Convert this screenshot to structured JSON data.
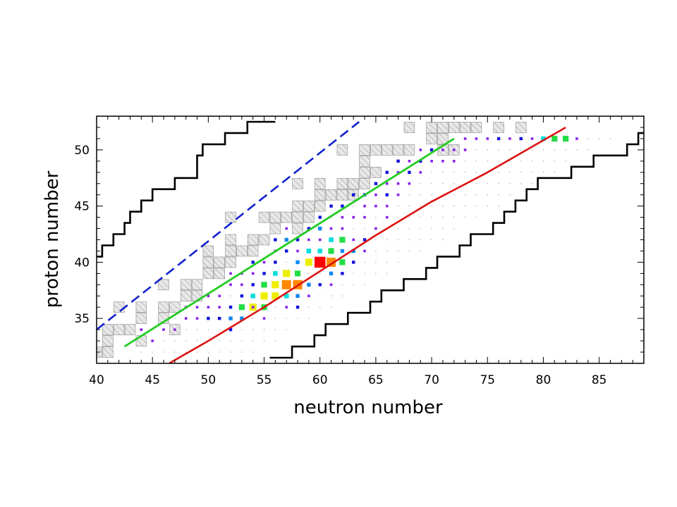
{
  "chart_data": {
    "type": "scatter",
    "title": "",
    "xlabel": "neutron number",
    "ylabel": "proton number",
    "xlim": [
      40,
      89
    ],
    "ylim": [
      31,
      53
    ],
    "x_ticks": [
      40,
      45,
      50,
      55,
      60,
      65,
      70,
      75,
      80,
      85
    ],
    "y_ticks": [
      35,
      40,
      45,
      50
    ],
    "grid": false,
    "legend": "none",
    "colors": {
      "frame": "#000000",
      "green_line": "#22cc22",
      "red_line": "#dd1111",
      "blue_dashed": "#1122cc",
      "hatch_fill": "#e8e8e8",
      "hatch_edge": "#8a8a8a"
    },
    "color_scale": [
      "#ff00ff",
      "#8822ee",
      "#1111dd",
      "#1188ee",
      "#00dddd",
      "#22dd44",
      "#eeee00",
      "#ff8800",
      "#ff0000"
    ],
    "lines": {
      "green": [
        [
          42.5,
          32.5
        ],
        [
          72,
          51
        ]
      ],
      "red": [
        [
          46.5,
          31
        ],
        [
          50,
          33
        ],
        [
          55,
          36
        ],
        [
          60,
          39.2
        ],
        [
          65,
          42.4
        ],
        [
          70,
          45.4
        ],
        [
          75,
          48
        ],
        [
          82,
          52
        ]
      ],
      "blue_dashed": [
        [
          40,
          34
        ],
        [
          63.5,
          52.5
        ]
      ]
    },
    "drip_line_left": [
      [
        40,
        40.5
      ],
      [
        40.5,
        40.5
      ],
      [
        40.5,
        41.5
      ],
      [
        41.5,
        41.5
      ],
      [
        41.5,
        42.5
      ],
      [
        42.5,
        42.5
      ],
      [
        42.5,
        43.5
      ],
      [
        43,
        43.5
      ],
      [
        43,
        44.5
      ],
      [
        44,
        44.5
      ],
      [
        44,
        45.5
      ],
      [
        45,
        45.5
      ],
      [
        45,
        46.5
      ],
      [
        47,
        46.5
      ],
      [
        47,
        47.5
      ],
      [
        49,
        47.5
      ],
      [
        49,
        49.5
      ],
      [
        49.5,
        49.5
      ],
      [
        49.5,
        50.5
      ],
      [
        51.5,
        50.5
      ],
      [
        51.5,
        51.5
      ],
      [
        53.5,
        51.5
      ],
      [
        53.5,
        52.5
      ],
      [
        56,
        52.5
      ]
    ],
    "drip_line_right": [
      [
        55.5,
        31.5
      ],
      [
        57.5,
        31.5
      ],
      [
        57.5,
        32.5
      ],
      [
        59.5,
        32.5
      ],
      [
        59.5,
        33.5
      ],
      [
        60.5,
        33.5
      ],
      [
        60.5,
        34.5
      ],
      [
        62.5,
        34.5
      ],
      [
        62.5,
        35.5
      ],
      [
        64.5,
        35.5
      ],
      [
        64.5,
        36.5
      ],
      [
        65.5,
        36.5
      ],
      [
        65.5,
        37.5
      ],
      [
        67.5,
        37.5
      ],
      [
        67.5,
        38.5
      ],
      [
        69.5,
        38.5
      ],
      [
        69.5,
        39.5
      ],
      [
        70.5,
        39.5
      ],
      [
        70.5,
        40.5
      ],
      [
        72.5,
        40.5
      ],
      [
        72.5,
        41.5
      ],
      [
        73.5,
        41.5
      ],
      [
        73.5,
        42.5
      ],
      [
        75.5,
        42.5
      ],
      [
        75.5,
        43.5
      ],
      [
        76.5,
        43.5
      ],
      [
        76.5,
        44.5
      ],
      [
        77.5,
        44.5
      ],
      [
        77.5,
        45.5
      ],
      [
        78.5,
        45.5
      ],
      [
        78.5,
        46.5
      ],
      [
        79.5,
        46.5
      ],
      [
        79.5,
        47.5
      ],
      [
        82.5,
        47.5
      ],
      [
        82.5,
        48.5
      ],
      [
        84.5,
        48.5
      ],
      [
        84.5,
        49.5
      ],
      [
        87.5,
        49.5
      ],
      [
        87.5,
        50.5
      ],
      [
        88.5,
        50.5
      ],
      [
        88.5,
        51.5
      ],
      [
        89,
        51.5
      ]
    ],
    "hatched_boxes": [
      [
        40,
        32
      ],
      [
        41,
        32
      ],
      [
        41,
        33
      ],
      [
        41,
        34
      ],
      [
        42,
        34
      ],
      [
        43,
        34
      ],
      [
        42,
        36
      ],
      [
        44,
        35
      ],
      [
        44,
        36
      ],
      [
        44,
        33
      ],
      [
        46,
        36
      ],
      [
        46,
        35
      ],
      [
        47,
        36
      ],
      [
        47,
        34
      ],
      [
        48,
        37
      ],
      [
        48,
        38
      ],
      [
        49,
        38
      ],
      [
        49,
        37
      ],
      [
        50,
        39
      ],
      [
        50,
        40
      ],
      [
        50,
        41
      ],
      [
        46,
        38
      ],
      [
        51,
        39
      ],
      [
        51,
        40
      ],
      [
        52,
        40
      ],
      [
        52,
        41
      ],
      [
        52,
        42
      ],
      [
        52,
        44
      ],
      [
        53,
        41
      ],
      [
        54,
        41
      ],
      [
        54,
        42
      ],
      [
        55,
        42
      ],
      [
        55,
        44
      ],
      [
        56,
        43
      ],
      [
        56,
        44
      ],
      [
        57,
        44
      ],
      [
        58,
        43
      ],
      [
        58,
        44
      ],
      [
        59,
        44
      ],
      [
        58,
        45
      ],
      [
        59,
        45
      ],
      [
        60,
        45
      ],
      [
        60,
        46
      ],
      [
        60,
        47
      ],
      [
        58,
        47
      ],
      [
        61,
        46
      ],
      [
        62,
        46
      ],
      [
        63,
        46
      ],
      [
        62,
        47
      ],
      [
        63,
        47
      ],
      [
        64,
        47
      ],
      [
        62,
        50
      ],
      [
        64,
        48
      ],
      [
        65,
        48
      ],
      [
        64,
        49
      ],
      [
        64,
        50
      ],
      [
        65,
        50
      ],
      [
        66,
        50
      ],
      [
        67,
        50
      ],
      [
        68,
        50
      ],
      [
        68,
        52
      ],
      [
        70,
        51
      ],
      [
        70,
        52
      ],
      [
        71,
        51
      ],
      [
        71,
        52
      ],
      [
        72,
        52
      ],
      [
        73,
        52
      ],
      [
        74,
        52
      ],
      [
        71,
        50
      ],
      [
        72,
        50
      ],
      [
        76,
        52
      ],
      [
        78,
        52
      ]
    ],
    "nuclei": [
      {
        "n": 60,
        "z": 40,
        "level": 9
      },
      {
        "n": 58,
        "z": 38,
        "level": 8
      },
      {
        "n": 57,
        "z": 38,
        "level": 8
      },
      {
        "n": 61,
        "z": 40,
        "level": 8
      },
      {
        "n": 56,
        "z": 38,
        "level": 7
      },
      {
        "n": 56,
        "z": 37,
        "level": 7
      },
      {
        "n": 55,
        "z": 37,
        "level": 7
      },
      {
        "n": 54,
        "z": 36,
        "level": 7
      },
      {
        "n": 57,
        "z": 39,
        "level": 7
      },
      {
        "n": 59,
        "z": 40,
        "level": 7
      },
      {
        "n": 53,
        "z": 36,
        "level": 6
      },
      {
        "n": 55,
        "z": 36,
        "level": 6
      },
      {
        "n": 55,
        "z": 38,
        "level": 6
      },
      {
        "n": 58,
        "z": 39,
        "level": 6
      },
      {
        "n": 61,
        "z": 41,
        "level": 6
      },
      {
        "n": 62,
        "z": 40,
        "level": 6
      },
      {
        "n": 62,
        "z": 42,
        "level": 6
      },
      {
        "n": 81,
        "z": 51,
        "level": 6
      },
      {
        "n": 82,
        "z": 51,
        "level": 6
      },
      {
        "n": 54,
        "z": 37,
        "level": 5
      },
      {
        "n": 56,
        "z": 39,
        "level": 5
      },
      {
        "n": 59,
        "z": 41,
        "level": 5
      },
      {
        "n": 60,
        "z": 41,
        "level": 5
      },
      {
        "n": 61,
        "z": 42,
        "level": 5
      },
      {
        "n": 57,
        "z": 37,
        "level": 5
      },
      {
        "n": 80,
        "z": 51,
        "level": 5
      },
      {
        "n": 52,
        "z": 35,
        "level": 4
      },
      {
        "n": 53,
        "z": 35,
        "level": 4
      },
      {
        "n": 58,
        "z": 37,
        "level": 4
      },
      {
        "n": 59,
        "z": 38,
        "level": 4
      },
      {
        "n": 60,
        "z": 43,
        "level": 4
      },
      {
        "n": 61,
        "z": 39,
        "level": 4
      },
      {
        "n": 62,
        "z": 41,
        "level": 4
      },
      {
        "n": 57,
        "z": 42,
        "level": 4
      },
      {
        "n": 58,
        "z": 40,
        "level": 4
      },
      {
        "n": 63,
        "z": 41,
        "level": 4
      },
      {
        "n": 50,
        "z": 35,
        "level": 3
      },
      {
        "n": 51,
        "z": 35,
        "level": 3
      },
      {
        "n": 52,
        "z": 36,
        "level": 3
      },
      {
        "n": 53,
        "z": 37,
        "level": 3
      },
      {
        "n": 54,
        "z": 38,
        "level": 3
      },
      {
        "n": 55,
        "z": 39,
        "level": 3
      },
      {
        "n": 56,
        "z": 40,
        "level": 3
      },
      {
        "n": 57,
        "z": 41,
        "level": 3
      },
      {
        "n": 58,
        "z": 42,
        "level": 3
      },
      {
        "n": 59,
        "z": 43,
        "level": 3
      },
      {
        "n": 60,
        "z": 44,
        "level": 3
      },
      {
        "n": 61,
        "z": 45,
        "level": 3
      },
      {
        "n": 62,
        "z": 45,
        "level": 3
      },
      {
        "n": 63,
        "z": 46,
        "level": 3
      },
      {
        "n": 64,
        "z": 46,
        "level": 3
      },
      {
        "n": 65,
        "z": 47,
        "level": 3
      },
      {
        "n": 66,
        "z": 48,
        "level": 3
      },
      {
        "n": 68,
        "z": 48,
        "level": 3
      },
      {
        "n": 69,
        "z": 49,
        "level": 3
      },
      {
        "n": 70,
        "z": 50,
        "level": 3
      },
      {
        "n": 58,
        "z": 36,
        "level": 3
      },
      {
        "n": 60,
        "z": 38,
        "level": 3
      },
      {
        "n": 62,
        "z": 39,
        "level": 3
      },
      {
        "n": 63,
        "z": 40,
        "level": 3
      },
      {
        "n": 64,
        "z": 42,
        "level": 3
      },
      {
        "n": 56,
        "z": 42,
        "level": 3
      },
      {
        "n": 54,
        "z": 40,
        "level": 3
      },
      {
        "n": 52,
        "z": 34,
        "level": 3
      },
      {
        "n": 76,
        "z": 51,
        "level": 3
      },
      {
        "n": 78,
        "z": 51,
        "level": 3
      },
      {
        "n": 66,
        "z": 46,
        "level": 3
      },
      {
        "n": 67,
        "z": 49,
        "level": 3
      },
      {
        "n": 45,
        "z": 33,
        "level": 2
      },
      {
        "n": 47,
        "z": 34,
        "level": 2
      },
      {
        "n": 48,
        "z": 35,
        "level": 2
      },
      {
        "n": 49,
        "z": 36,
        "level": 2
      },
      {
        "n": 50,
        "z": 36,
        "level": 2
      },
      {
        "n": 51,
        "z": 37,
        "level": 2
      },
      {
        "n": 52,
        "z": 38,
        "level": 2
      },
      {
        "n": 53,
        "z": 39,
        "level": 2
      },
      {
        "n": 54,
        "z": 39,
        "level": 2
      },
      {
        "n": 55,
        "z": 40,
        "level": 2
      },
      {
        "n": 56,
        "z": 41,
        "level": 2
      },
      {
        "n": 57,
        "z": 43,
        "level": 2
      },
      {
        "n": 58,
        "z": 41,
        "level": 2
      },
      {
        "n": 59,
        "z": 42,
        "level": 2
      },
      {
        "n": 60,
        "z": 42,
        "level": 2
      },
      {
        "n": 61,
        "z": 43,
        "level": 2
      },
      {
        "n": 62,
        "z": 43,
        "level": 2
      },
      {
        "n": 62,
        "z": 44,
        "level": 2
      },
      {
        "n": 63,
        "z": 44,
        "level": 2
      },
      {
        "n": 64,
        "z": 44,
        "level": 2
      },
      {
        "n": 64,
        "z": 45,
        "level": 2
      },
      {
        "n": 65,
        "z": 45,
        "level": 2
      },
      {
        "n": 65,
        "z": 46,
        "level": 2
      },
      {
        "n": 66,
        "z": 47,
        "level": 2
      },
      {
        "n": 67,
        "z": 47,
        "level": 2
      },
      {
        "n": 67,
        "z": 48,
        "level": 2
      },
      {
        "n": 68,
        "z": 49,
        "level": 2
      },
      {
        "n": 69,
        "z": 50,
        "level": 2
      },
      {
        "n": 70,
        "z": 49,
        "level": 2
      },
      {
        "n": 71,
        "z": 50,
        "level": 2
      },
      {
        "n": 72,
        "z": 50,
        "level": 2
      },
      {
        "n": 73,
        "z": 51,
        "level": 2
      },
      {
        "n": 74,
        "z": 51,
        "level": 2
      },
      {
        "n": 75,
        "z": 51,
        "level": 2
      },
      {
        "n": 77,
        "z": 51,
        "level": 2
      },
      {
        "n": 79,
        "z": 51,
        "level": 2
      },
      {
        "n": 83,
        "z": 51,
        "level": 2
      },
      {
        "n": 65,
        "z": 43,
        "level": 2
      },
      {
        "n": 64,
        "z": 41,
        "level": 2
      },
      {
        "n": 63,
        "z": 42,
        "level": 2
      },
      {
        "n": 66,
        "z": 44,
        "level": 2
      },
      {
        "n": 55,
        "z": 35,
        "level": 2
      },
      {
        "n": 57,
        "z": 36,
        "level": 2
      },
      {
        "n": 53,
        "z": 38,
        "level": 2
      },
      {
        "n": 51,
        "z": 36,
        "level": 2
      },
      {
        "n": 49,
        "z": 35,
        "level": 2
      },
      {
        "n": 48,
        "z": 36,
        "level": 2
      },
      {
        "n": 46,
        "z": 34,
        "level": 2
      },
      {
        "n": 44,
        "z": 34,
        "level": 2
      },
      {
        "n": 50,
        "z": 37,
        "level": 2
      },
      {
        "n": 52,
        "z": 39,
        "level": 2
      },
      {
        "n": 54,
        "z": 36,
        "level": 2
      },
      {
        "n": 59,
        "z": 37,
        "level": 2
      },
      {
        "n": 61,
        "z": 38,
        "level": 2
      },
      {
        "n": 66,
        "z": 45,
        "level": 2
      },
      {
        "n": 67,
        "z": 46,
        "level": 2
      },
      {
        "n": 68,
        "z": 47,
        "level": 2
      },
      {
        "n": 69,
        "z": 48,
        "level": 2
      },
      {
        "n": 71,
        "z": 49,
        "level": 2
      },
      {
        "n": 72,
        "z": 49,
        "level": 2
      },
      {
        "n": 73,
        "z": 50,
        "level": 2
      }
    ],
    "faint_region": {
      "n_from": 44,
      "n_to": 89,
      "z_from": 32,
      "z_to": 51
    }
  }
}
